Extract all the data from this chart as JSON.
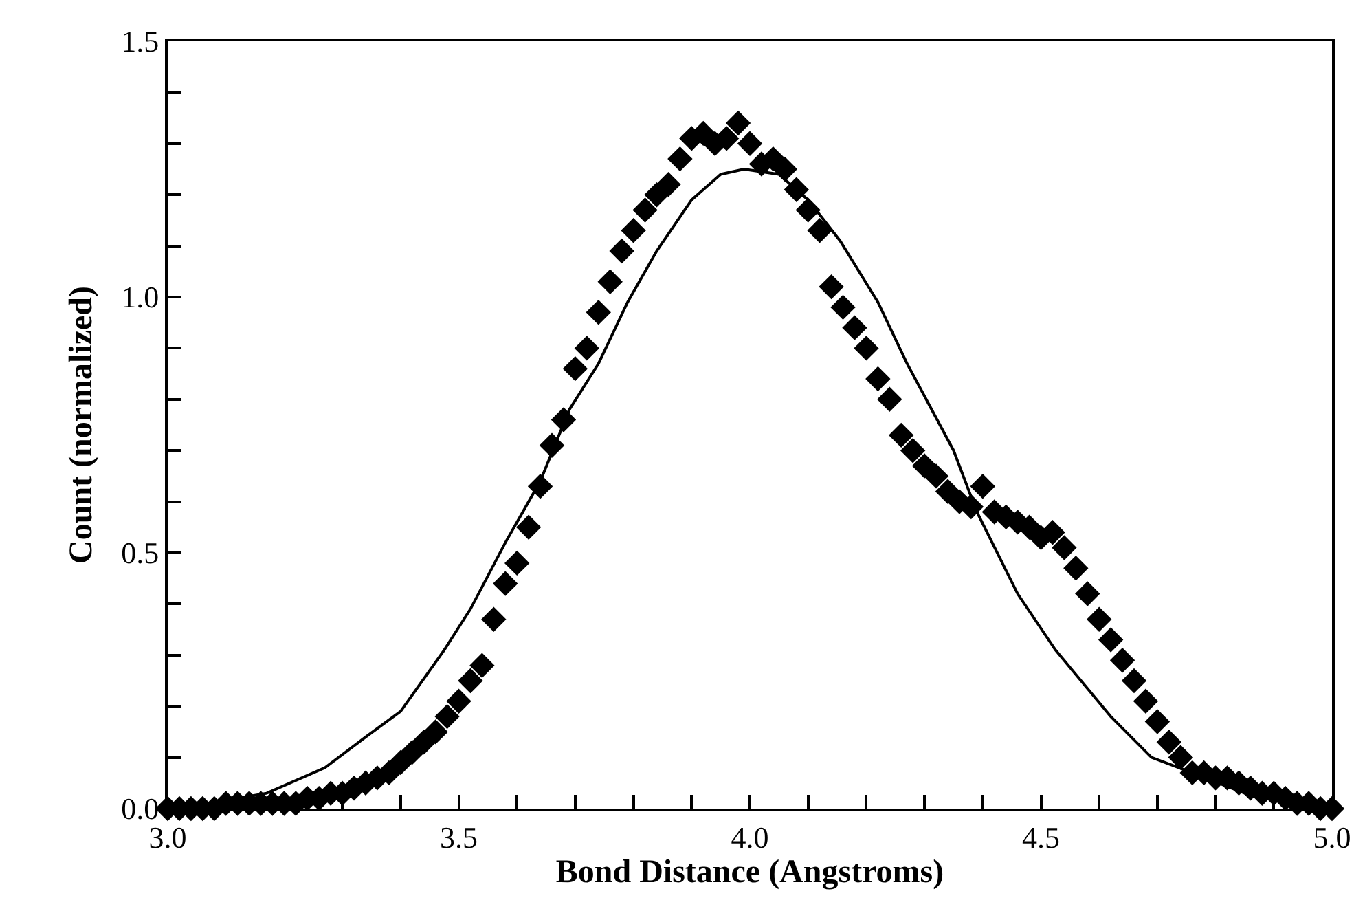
{
  "chart_data": {
    "type": "scatter",
    "xlabel": "Bond Distance (Angstroms)",
    "ylabel": "Count (normalized)",
    "xlim": [
      3.0,
      5.0
    ],
    "ylim": [
      0,
      1.5
    ],
    "xticks": [
      {
        "value": 3.0,
        "label": "3.0"
      },
      {
        "value": 3.1,
        "label": null
      },
      {
        "value": 3.2,
        "label": null
      },
      {
        "value": 3.3,
        "label": null
      },
      {
        "value": 3.4,
        "label": null
      },
      {
        "value": 3.5,
        "label": "3.5"
      },
      {
        "value": 3.6,
        "label": null
      },
      {
        "value": 3.7,
        "label": null
      },
      {
        "value": 3.8,
        "label": null
      },
      {
        "value": 3.9,
        "label": null
      },
      {
        "value": 4.0,
        "label": "4.0"
      },
      {
        "value": 4.1,
        "label": null
      },
      {
        "value": 4.2,
        "label": null
      },
      {
        "value": 4.3,
        "label": null
      },
      {
        "value": 4.4,
        "label": null
      },
      {
        "value": 4.5,
        "label": "4.5"
      },
      {
        "value": 4.6,
        "label": null
      },
      {
        "value": 4.7,
        "label": null
      },
      {
        "value": 4.8,
        "label": null
      },
      {
        "value": 4.9,
        "label": null
      },
      {
        "value": 5.0,
        "label": "5.0"
      }
    ],
    "yticks": [
      {
        "value": 0,
        "label": "0.0"
      },
      {
        "value": 0.1,
        "label": null
      },
      {
        "value": 0.2,
        "label": null
      },
      {
        "value": 0.3,
        "label": null
      },
      {
        "value": 0.4,
        "label": null
      },
      {
        "value": 0.5,
        "label": "0.5"
      },
      {
        "value": 0.6,
        "label": null
      },
      {
        "value": 0.7,
        "label": null
      },
      {
        "value": 0.8,
        "label": null
      },
      {
        "value": 0.9,
        "label": null
      },
      {
        "value": 1.0,
        "label": "1.0"
      },
      {
        "value": 1.1,
        "label": null
      },
      {
        "value": 1.2,
        "label": null
      },
      {
        "value": 1.3,
        "label": null
      },
      {
        "value": 1.4,
        "label": null
      },
      {
        "value": 1.5,
        "label": "1.5"
      }
    ],
    "grid": false,
    "series": [
      {
        "type": "scatter",
        "marker": "diamond",
        "color": "#000000",
        "x": [
          3.0,
          3.02,
          3.04,
          3.06,
          3.08,
          3.1,
          3.12,
          3.14,
          3.16,
          3.18,
          3.2,
          3.22,
          3.24,
          3.26,
          3.28,
          3.3,
          3.32,
          3.34,
          3.36,
          3.38,
          3.4,
          3.42,
          3.44,
          3.46,
          3.48,
          3.5,
          3.52,
          3.54,
          3.56,
          3.58,
          3.6,
          3.62,
          3.64,
          3.66,
          3.68,
          3.7,
          3.72,
          3.74,
          3.76,
          3.78,
          3.8,
          3.82,
          3.84,
          3.86,
          3.88,
          3.9,
          3.92,
          3.94,
          3.96,
          3.98,
          4.0,
          4.02,
          4.04,
          4.06,
          4.08,
          4.1,
          4.12,
          4.14,
          4.16,
          4.18,
          4.2,
          4.22,
          4.24,
          4.26,
          4.28,
          4.3,
          4.32,
          4.34,
          4.36,
          4.38,
          4.4,
          4.42,
          4.44,
          4.46,
          4.48,
          4.5,
          4.52,
          4.54,
          4.56,
          4.58,
          4.6,
          4.62,
          4.64,
          4.66,
          4.68,
          4.7,
          4.72,
          4.74,
          4.76,
          4.78,
          4.8,
          4.82,
          4.84,
          4.86,
          4.88,
          4.9,
          4.92,
          4.94,
          4.96,
          4.98,
          5.0
        ],
        "values": [
          0,
          0,
          0,
          0,
          0,
          0.01,
          0.01,
          0.01,
          0.01,
          0.01,
          0.01,
          0.01,
          0.02,
          0.02,
          0.03,
          0.03,
          0.04,
          0.05,
          0.06,
          0.07,
          0.09,
          0.11,
          0.13,
          0.15,
          0.18,
          0.21,
          0.25,
          0.28,
          0.37,
          0.44,
          0.48,
          0.55,
          0.63,
          0.71,
          0.76,
          0.86,
          0.9,
          0.97,
          1.03,
          1.09,
          1.13,
          1.17,
          1.2,
          1.22,
          1.27,
          1.31,
          1.32,
          1.3,
          1.31,
          1.34,
          1.3,
          1.26,
          1.27,
          1.25,
          1.21,
          1.17,
          1.13,
          1.02,
          0.98,
          0.94,
          0.9,
          0.84,
          0.8,
          0.73,
          0.7,
          0.67,
          0.65,
          0.62,
          0.6,
          0.59,
          0.63,
          0.58,
          0.57,
          0.56,
          0.55,
          0.53,
          0.54,
          0.51,
          0.47,
          0.42,
          0.37,
          0.33,
          0.29,
          0.25,
          0.21,
          0.17,
          0.13,
          0.1,
          0.07,
          0.07,
          0.06,
          0.06,
          0.05,
          0.04,
          0.03,
          0.03,
          0.02,
          0.01,
          0.01,
          0,
          0
        ]
      },
      {
        "type": "line",
        "marker": "none",
        "line_style": "solid",
        "color": "#000000",
        "x": [
          3.0,
          3.07,
          3.17,
          3.27,
          3.34,
          3.4,
          3.475,
          3.52,
          3.58,
          3.64,
          3.69,
          3.74,
          3.79,
          3.84,
          3.9,
          3.95,
          3.99,
          4.05,
          4.1,
          4.155,
          4.22,
          4.27,
          4.35,
          4.39,
          4.46,
          4.525,
          4.62,
          4.69,
          4.76,
          4.85,
          4.93,
          5.0
        ],
        "values": [
          0,
          0.01,
          0.03,
          0.08,
          0.14,
          0.19,
          0.31,
          0.39,
          0.52,
          0.64,
          0.78,
          0.87,
          0.99,
          1.09,
          1.19,
          1.24,
          1.25,
          1.24,
          1.19,
          1.11,
          0.99,
          0.87,
          0.7,
          0.58,
          0.42,
          0.31,
          0.18,
          0.1,
          0.07,
          0.03,
          0.01,
          0
        ]
      }
    ]
  }
}
